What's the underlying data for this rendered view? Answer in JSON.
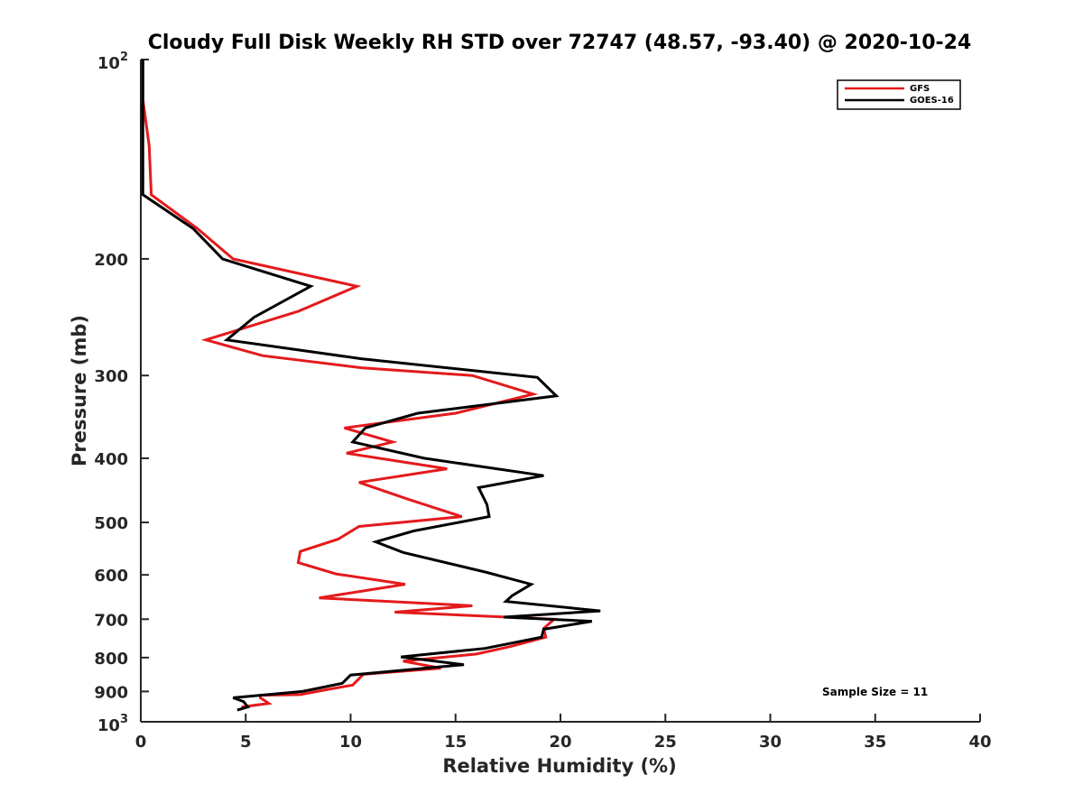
{
  "chart_data": {
    "type": "line",
    "title": "Cloudy Full Disk Weekly RH STD over 72747 (48.57, -93.40) @ 2020-10-24",
    "xlabel": "Relative Humidity (%)",
    "ylabel": "Pressure (mb)",
    "xlim": [
      0,
      40
    ],
    "ylim": [
      100,
      1000
    ],
    "yscale": "log",
    "y_reversed": true,
    "x_ticks": [
      0,
      5,
      10,
      15,
      20,
      25,
      30,
      35,
      40
    ],
    "x_tick_labels": [
      "0",
      "5",
      "10",
      "15",
      "20",
      "25",
      "30",
      "35",
      "40"
    ],
    "y_ticks": [
      200,
      300,
      400,
      500,
      600,
      700,
      800,
      900
    ],
    "y_tick_labels": [
      "200",
      "300",
      "400",
      "500",
      "600",
      "700",
      "800",
      "900"
    ],
    "y_top_label": {
      "base": "10",
      "exp": "2"
    },
    "y_bottom_label": {
      "base": "10",
      "exp": "3"
    },
    "grid": false,
    "legend_position": "top-right",
    "annotation": "Sample Size = 11",
    "series": [
      {
        "name": "GFS",
        "color": "#e41a1c",
        "x": [
          0.1,
          0.1,
          0.4,
          0.5,
          2.7,
          4.4,
          10.3,
          7.5,
          3.1,
          5.8,
          10.5,
          15.8,
          18.7,
          15.0,
          9.7,
          12.0,
          9.8,
          14.6,
          10.4,
          12.8,
          15.3,
          10.4,
          9.4,
          7.6,
          7.5,
          9.3,
          12.6,
          8.5,
          15.8,
          12.1,
          19.7,
          19.2,
          19.3,
          17.6,
          16.0,
          12.5,
          14.3,
          10.6,
          10.1,
          8.8,
          7.6,
          5.7,
          5.7,
          6.1,
          4.8
        ],
        "y": [
          100,
          115,
          135,
          160,
          180,
          200,
          220,
          240,
          265,
          280,
          292,
          300,
          320,
          342,
          360,
          378,
          393,
          415,
          435,
          462,
          490,
          507,
          530,
          553,
          575,
          598,
          620,
          650,
          668,
          683,
          700,
          723,
          745,
          770,
          790,
          810,
          830,
          848,
          880,
          895,
          910,
          912,
          920,
          938,
          950
        ]
      },
      {
        "name": "GOES-16",
        "color": "#000000",
        "x": [
          0.1,
          0.1,
          0.1,
          0.1,
          2.5,
          3.9,
          8.1,
          5.4,
          4.1,
          10.5,
          18.9,
          19.8,
          13.2,
          10.7,
          10.1,
          13.5,
          19.2,
          16.1,
          16.5,
          16.6,
          13.0,
          11.2,
          12.5,
          16.5,
          18.6,
          17.7,
          17.4,
          21.9,
          17.3,
          21.5,
          19.2,
          19.1,
          16.4,
          12.4,
          15.4,
          10.0,
          9.6,
          7.7,
          4.4,
          4.9,
          5.1,
          4.6
        ],
        "y": [
          100,
          115,
          135,
          160,
          180,
          200,
          220,
          245,
          265,
          283,
          302,
          322,
          342,
          360,
          378,
          400,
          425,
          443,
          470,
          490,
          515,
          535,
          555,
          595,
          620,
          645,
          658,
          680,
          695,
          705,
          725,
          745,
          775,
          798,
          820,
          850,
          875,
          900,
          920,
          932,
          950,
          960
        ]
      }
    ]
  }
}
